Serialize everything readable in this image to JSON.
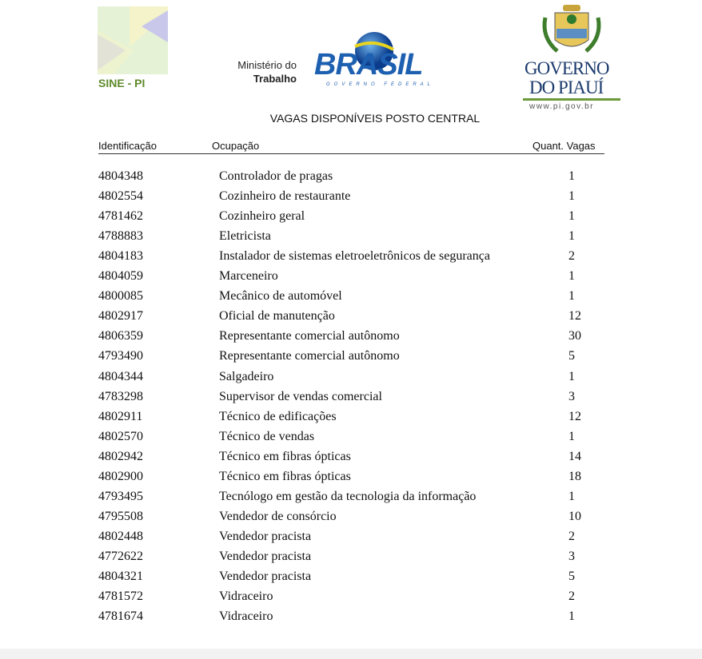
{
  "logos": {
    "sine": "SINE - PI",
    "ministry_line1": "Ministério do",
    "ministry_line2": "Trabalho",
    "brasil": "BRASIL",
    "brasil_sub": "GOVERNO FEDERAL",
    "governo_line1": "GOVERNO",
    "governo_line2": "DO PIAUÍ",
    "governo_url": "www.pi.gov.br"
  },
  "title": "VAGAS DISPONÍVEIS POSTO CENTRAL",
  "columns": [
    "Identificação",
    "Ocupação",
    "Quant. Vagas"
  ],
  "rows": [
    [
      "4804348",
      "Controlador de pragas",
      "1"
    ],
    [
      "4802554",
      "Cozinheiro de restaurante",
      "1"
    ],
    [
      "4781462",
      "Cozinheiro geral",
      "1"
    ],
    [
      "4788883",
      "Eletricista",
      "1"
    ],
    [
      "4804183",
      "Instalador de sistemas eletroeletrônicos de segurança",
      "2"
    ],
    [
      "4804059",
      "Marceneiro",
      "1"
    ],
    [
      "4800085",
      "Mecânico de automóvel",
      "1"
    ],
    [
      "4802917",
      "Oficial de manutenção",
      "12"
    ],
    [
      "4806359",
      "Representante comercial autônomo",
      "30"
    ],
    [
      "4793490",
      "Representante comercial autônomo",
      "5"
    ],
    [
      "4804344",
      "Salgadeiro",
      "1"
    ],
    [
      "4783298",
      "Supervisor de vendas comercial",
      "3"
    ],
    [
      "4802911",
      "Técnico de edificações",
      "12"
    ],
    [
      "4802570",
      "Técnico de vendas",
      "1"
    ],
    [
      "4802942",
      "Técnico em fibras ópticas",
      "14"
    ],
    [
      "4802900",
      "Técnico em fibras ópticas",
      "18"
    ],
    [
      "4793495",
      "Tecnólogo em gestão da tecnologia da informação",
      "1"
    ],
    [
      "4795508",
      "Vendedor de consórcio",
      "10"
    ],
    [
      "4802448",
      "Vendedor pracista",
      "2"
    ],
    [
      "4772622",
      "Vendedor pracista",
      "3"
    ],
    [
      "4804321",
      "Vendedor pracista",
      "5"
    ],
    [
      "4781572",
      "Vidraceiro",
      "2"
    ],
    [
      "4781674",
      "Vidraceiro",
      "1"
    ]
  ]
}
